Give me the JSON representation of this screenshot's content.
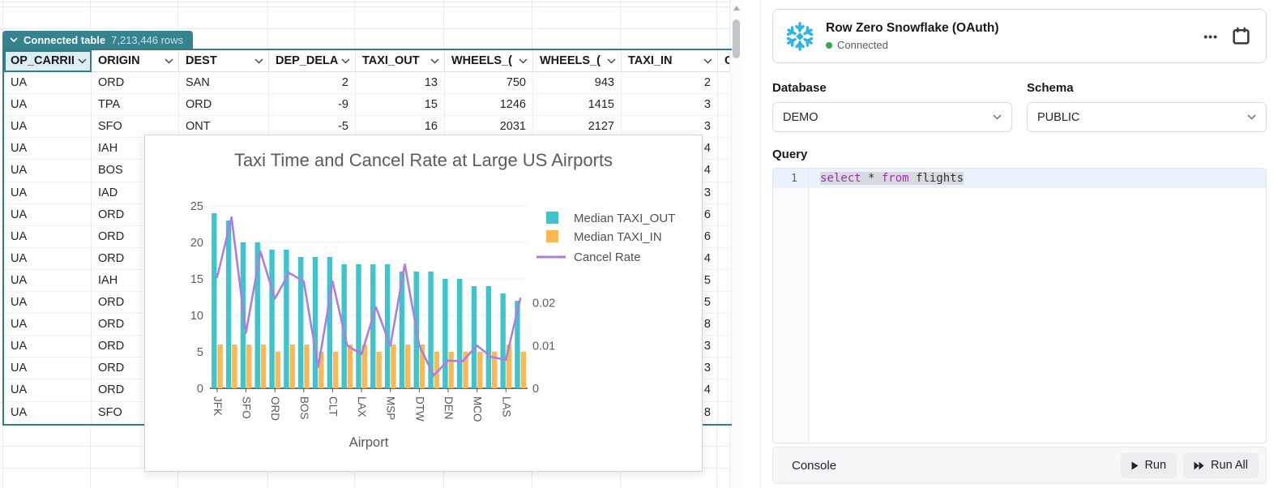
{
  "sheet": {
    "tag": {
      "label": "Connected table",
      "rows_count": "7,213,446 rows"
    },
    "columns": [
      "OP_CARRII",
      "ORIGIN",
      "DEST",
      "DEP_DELA",
      "TAXI_OUT",
      "WHEELS_(",
      "WHEELS_(",
      "TAXI_IN",
      "CF"
    ],
    "rows": [
      [
        "UA",
        "ORD",
        "SAN",
        "2",
        "13",
        "750",
        "943",
        "2",
        ""
      ],
      [
        "UA",
        "TPA",
        "ORD",
        "-9",
        "15",
        "1246",
        "1415",
        "3",
        ""
      ],
      [
        "UA",
        "SFO",
        "ONT",
        "-5",
        "16",
        "2031",
        "2127",
        "3",
        ""
      ],
      [
        "UA",
        "IAH",
        "",
        "",
        "",
        "",
        "",
        "4",
        ""
      ],
      [
        "UA",
        "BOS",
        "",
        "",
        "",
        "",
        "",
        "4",
        ""
      ],
      [
        "UA",
        "IAD",
        "",
        "",
        "",
        "",
        "",
        "3",
        ""
      ],
      [
        "UA",
        "ORD",
        "",
        "",
        "",
        "",
        "",
        "6",
        ""
      ],
      [
        "UA",
        "ORD",
        "",
        "",
        "",
        "",
        "",
        "6",
        ""
      ],
      [
        "UA",
        "ORD",
        "",
        "",
        "",
        "",
        "",
        "4",
        ""
      ],
      [
        "UA",
        "IAH",
        "",
        "",
        "",
        "",
        "",
        "5",
        ""
      ],
      [
        "UA",
        "ORD",
        "",
        "",
        "",
        "",
        "",
        "5",
        ""
      ],
      [
        "UA",
        "ORD",
        "",
        "",
        "",
        "",
        "",
        "8",
        ""
      ],
      [
        "UA",
        "ORD",
        "",
        "",
        "",
        "",
        "",
        "3",
        ""
      ],
      [
        "UA",
        "ORD",
        "",
        "",
        "",
        "",
        "",
        "3",
        ""
      ],
      [
        "UA",
        "ORD",
        "",
        "",
        "",
        "",
        "",
        "4",
        ""
      ],
      [
        "UA",
        "SFO",
        "",
        "",
        "",
        "",
        "",
        "8",
        ""
      ]
    ]
  },
  "chart_data": {
    "type": "bar",
    "title": "Taxi Time and Cancel Rate at Large US Airports",
    "xlabel": "Airport",
    "categories": [
      "JFK",
      "",
      "SFO",
      "",
      "ORD",
      "",
      "BOS",
      "",
      "CLT",
      "",
      "LAX",
      "",
      "MSP",
      "",
      "DTW",
      "",
      "DEN",
      "",
      "MCO",
      "",
      "LAS",
      ""
    ],
    "series": [
      {
        "name": "Median TAXI_OUT",
        "type": "bar",
        "axis": "left",
        "color": "#3EC4CD",
        "values": [
          24,
          23,
          20,
          20,
          19,
          19,
          18,
          18,
          18,
          17,
          17,
          17,
          17,
          16,
          16,
          16,
          15,
          15,
          14,
          14,
          13,
          12
        ]
      },
      {
        "name": "Median TAXI_IN",
        "type": "bar",
        "axis": "left",
        "color": "#FBB854",
        "values": [
          6,
          6,
          6,
          6,
          5,
          6,
          6,
          5,
          5,
          6,
          6,
          5,
          6,
          6,
          6,
          5,
          5,
          5,
          5,
          5,
          6,
          5
        ]
      },
      {
        "name": "Cancel Rate",
        "type": "line",
        "axis": "right",
        "color": "#AF7EDC",
        "values": [
          0.026,
          0.04,
          0.013,
          0.032,
          0.021,
          0.027,
          0.025,
          0.005,
          0.025,
          0.01,
          0.008,
          0.019,
          0.01,
          0.029,
          0.01,
          0.003,
          0.0065,
          0.0063,
          0.01,
          0.0073,
          0.0067,
          0.021
        ]
      }
    ],
    "left_axis": {
      "ticks": [
        0,
        5,
        10,
        15,
        20,
        25
      ],
      "max": 25
    },
    "right_axis": {
      "ticks": [
        "0",
        "0.01",
        "0.02"
      ],
      "tick_values": [
        0,
        0.01,
        0.02
      ]
    },
    "legend_position": "right",
    "grid": true
  },
  "panel": {
    "connection": {
      "title": "Row Zero Snowflake (OAuth)",
      "status": "Connected",
      "status_color": "#35A853",
      "logo_color": "#29B5E8",
      "menu_icon": "ellipsis-icon",
      "calendar_icon": "calendar-icon",
      "menu_glyph": "•••"
    },
    "database": {
      "label": "Database",
      "value": "DEMO"
    },
    "schema": {
      "label": "Schema",
      "value": "PUBLIC"
    },
    "query": {
      "label": "Query",
      "line_number": "1",
      "tokens": [
        {
          "text": "select",
          "type": "keyword"
        },
        {
          "text": " * ",
          "type": "plain"
        },
        {
          "text": "from",
          "type": "keyword"
        },
        {
          "text": " flights",
          "type": "plain"
        }
      ]
    },
    "console": {
      "label": "Console",
      "run_label": "Run",
      "run_all_label": "Run All"
    }
  },
  "colors": {
    "table_accent": "#2F7E8A",
    "tag_bg": "#36838F",
    "bar_teal": "#3EC4CD",
    "bar_orange": "#FBB854",
    "line_purple": "#AF7EDC",
    "keyword": "#A62CB4",
    "snowflake_blue": "#29B5E8"
  }
}
